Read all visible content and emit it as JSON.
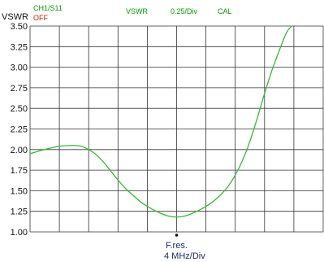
{
  "header": {
    "channel": "CH1/S11",
    "status": "OFF",
    "format": "VSWR",
    "scale": "0.25/Div",
    "cal": "CAL"
  },
  "marker": {
    "label": "F.res.",
    "scale": "4 MHz/Div"
  },
  "colors": {
    "trace": "#33bb33",
    "header_text": "#009900",
    "status_text": "#cc2200",
    "marker_text": "#1a2a6a",
    "grid": "#333333"
  },
  "chart_data": {
    "type": "line",
    "title": "",
    "ylabel": "VSWR",
    "xlabel": "",
    "xlim": [
      -20,
      20
    ],
    "ylim": [
      1.0,
      3.5
    ],
    "x_divisions": 10,
    "y_ticks": [
      3.5,
      3.25,
      3.0,
      2.75,
      2.5,
      2.25,
      2.0,
      1.75,
      1.5,
      1.25,
      1.0
    ],
    "y_tick_labels": [
      "3.50",
      "3.25",
      "3.00",
      "2.75",
      "2.50",
      "2.25",
      "2.00",
      "1.75",
      "1.50",
      "1.25",
      "1.00"
    ],
    "grid": true,
    "marker_x": 0,
    "series": [
      {
        "x": [
          -20,
          -18,
          -16,
          -14,
          -13,
          -12,
          -11,
          -10,
          -9,
          -8,
          -7,
          -6,
          -5,
          -4,
          -3,
          -2,
          -1,
          0,
          1,
          2,
          3,
          4,
          5,
          6,
          7,
          8,
          9,
          10,
          11,
          12,
          13,
          14,
          15,
          15.7
        ],
        "values": [
          1.95,
          2.0,
          2.04,
          2.05,
          2.04,
          2.0,
          1.94,
          1.85,
          1.74,
          1.63,
          1.53,
          1.45,
          1.37,
          1.31,
          1.26,
          1.22,
          1.19,
          1.18,
          1.19,
          1.22,
          1.26,
          1.31,
          1.37,
          1.45,
          1.55,
          1.69,
          1.87,
          2.1,
          2.38,
          2.68,
          2.96,
          3.2,
          3.42,
          3.5
        ]
      }
    ]
  }
}
